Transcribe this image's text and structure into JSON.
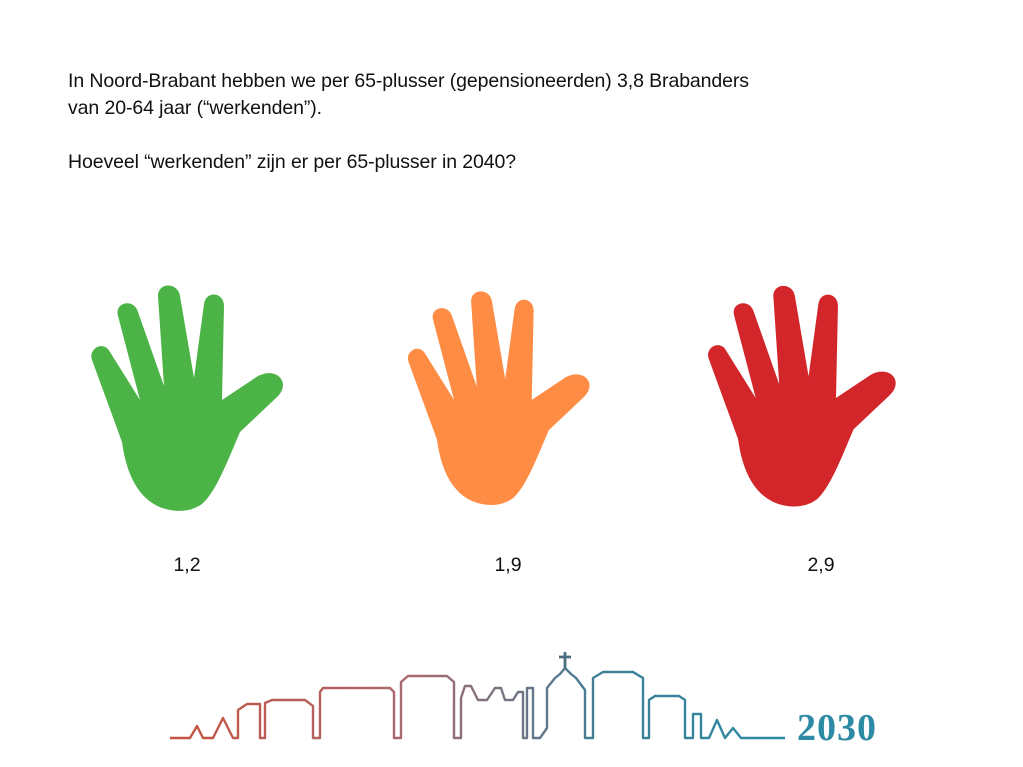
{
  "slide": {
    "line1": "In Noord-Brabant hebben we per 65-plusser (gepensioneerden) 3,8 Brabanders",
    "line2": "van 20-64 jaar (“werkenden”).",
    "question": "Hoeveel “werkenden” zijn er per 65-plusser in 2040?"
  },
  "options": [
    {
      "label": "1,2",
      "color": "#4cb447",
      "icon": "green-hand-icon"
    },
    {
      "label": "1,9",
      "color": "#ff8c45",
      "icon": "orange-hand-icon"
    },
    {
      "label": "2,9",
      "color": "#d2262a",
      "icon": "red-hand-icon"
    }
  ],
  "logo": {
    "text": "2030",
    "colors": [
      "#c8533f",
      "#a86a70",
      "#3f7e96",
      "#2c8aa4"
    ]
  }
}
